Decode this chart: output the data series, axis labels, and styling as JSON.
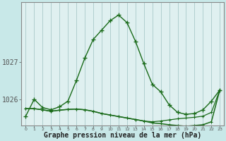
{
  "xlabel": "Graphe pression niveau de la mer (hPa)",
  "bg_color": "#c8e8e8",
  "plot_bg_color": "#dff0f0",
  "grid_color": "#b8d8d8",
  "line_color": "#1a6b1a",
  "x_ticks": [
    0,
    1,
    2,
    3,
    4,
    5,
    6,
    7,
    8,
    9,
    10,
    11,
    12,
    13,
    14,
    15,
    16,
    17,
    18,
    19,
    20,
    21,
    22,
    23
  ],
  "ylim": [
    1025.3,
    1028.6
  ],
  "yticks": [
    1026,
    1027
  ],
  "series1": [
    1025.55,
    1026.0,
    1025.78,
    1025.72,
    1025.8,
    1025.95,
    1026.5,
    1027.1,
    1027.6,
    1027.85,
    1028.1,
    1028.25,
    1028.05,
    1027.55,
    1026.95,
    1026.4,
    1026.2,
    1025.85,
    1025.65,
    1025.6,
    1025.62,
    1025.72,
    1025.95,
    1026.25
  ],
  "series2": [
    1025.75,
    1025.75,
    1025.72,
    1025.68,
    1025.71,
    1025.73,
    1025.74,
    1025.72,
    1025.68,
    1025.62,
    1025.58,
    1025.54,
    1025.5,
    1025.46,
    1025.42,
    1025.4,
    1025.42,
    1025.45,
    1025.48,
    1025.5,
    1025.52,
    1025.55,
    1025.65,
    1026.25
  ],
  "series3": [
    1025.75,
    1025.75,
    1025.72,
    1025.68,
    1025.71,
    1025.73,
    1025.74,
    1025.72,
    1025.68,
    1025.62,
    1025.58,
    1025.54,
    1025.5,
    1025.46,
    1025.42,
    1025.37,
    1025.35,
    1025.32,
    1025.3,
    1025.28,
    1025.3,
    1025.32,
    1025.4,
    1026.25
  ]
}
